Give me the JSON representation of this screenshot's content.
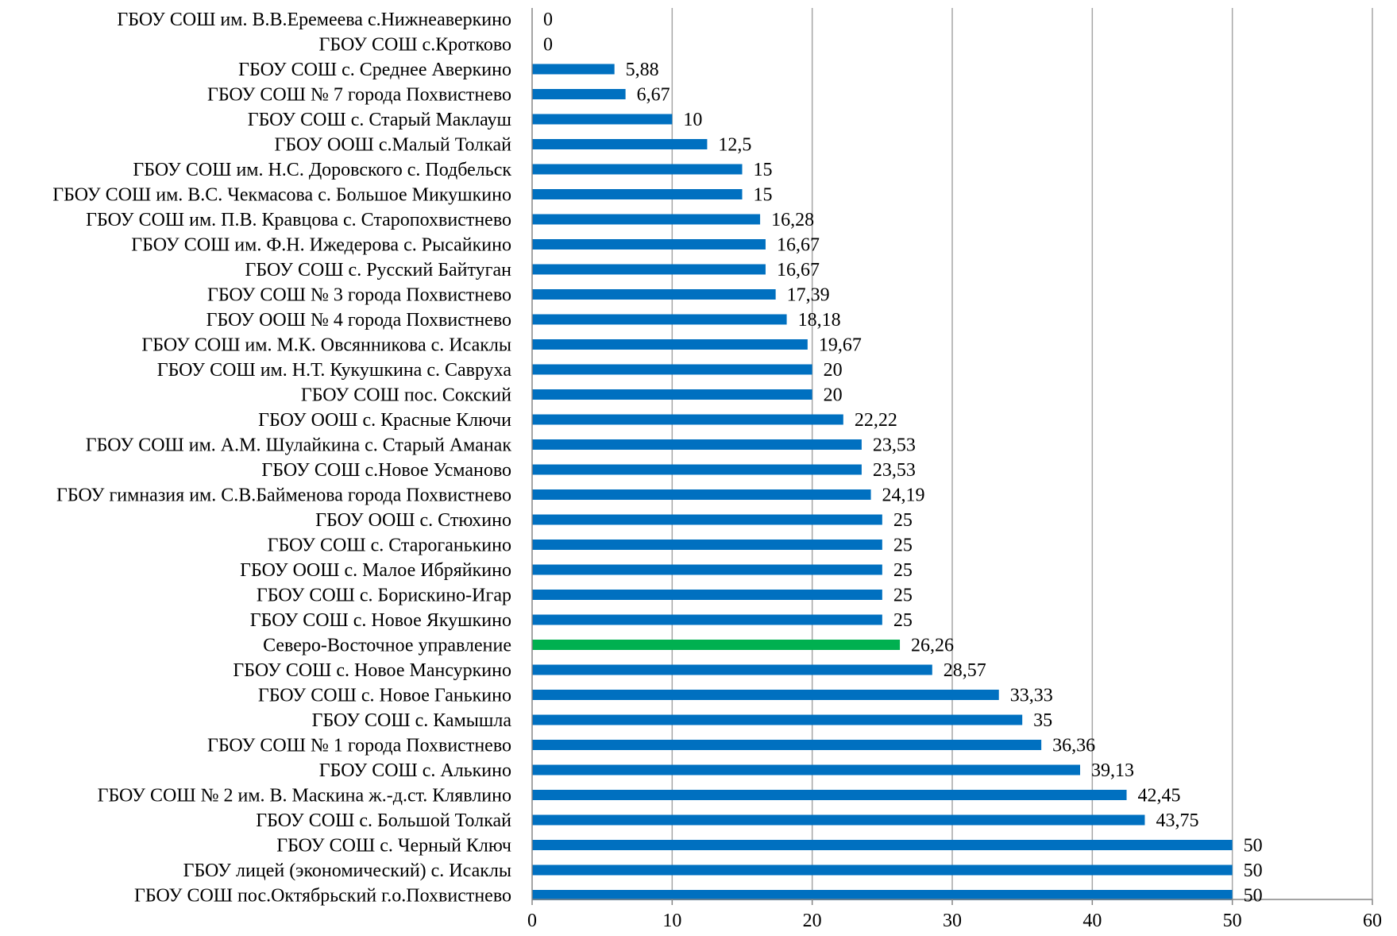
{
  "chart_data": {
    "type": "bar",
    "orientation": "horizontal",
    "title": "",
    "xlabel": "",
    "ylabel": "",
    "xlim": [
      0,
      60
    ],
    "x_ticks": [
      0,
      10,
      20,
      30,
      40,
      50,
      60
    ],
    "grid": "vertical",
    "legend": "none",
    "colors": {
      "default": "#0070C0",
      "highlight": "#00B050",
      "grid": "#A6A6A6"
    },
    "highlight_category": "Северо-Восточное управление",
    "categories": [
      "ГБОУ СОШ им. В.В.Еремеева с.Нижнеаверкино",
      "ГБОУ СОШ с.Кротково",
      "ГБОУ СОШ с. Среднее Аверкино",
      "ГБОУ СОШ № 7 города Похвистнево",
      "ГБОУ СОШ с. Старый Маклауш",
      "ГБОУ ООШ с.Малый Толкай",
      "ГБОУ СОШ им. Н.С. Доровского с. Подбельск",
      "ГБОУ СОШ им. В.С. Чекмасова с. Большое Микушкино",
      "ГБОУ СОШ им. П.В. Кравцова с. Старопохвистнево",
      "ГБОУ СОШ им. Ф.Н. Ижедерова с. Рысайкино",
      "ГБОУ СОШ с. Русский Байтуган",
      "ГБОУ СОШ № 3 города Похвистнево",
      "ГБОУ ООШ № 4 города Похвистнево",
      "ГБОУ СОШ им. М.К. Овсянникова с. Исаклы",
      "ГБОУ СОШ им. Н.Т. Кукушкина с. Савруха",
      "ГБОУ СОШ пос. Сокский",
      "ГБОУ ООШ с. Красные Ключи",
      "ГБОУ СОШ им. А.М. Шулайкина с. Старый Аманак",
      "ГБОУ СОШ с.Новое Усманово",
      "ГБОУ гимназия им. С.В.Байменова города Похвистнево",
      "ГБОУ ООШ с. Стюхино",
      "ГБОУ СОШ с. Староганькино",
      "ГБОУ ООШ с. Малое Ибряйкино",
      "ГБОУ СОШ с. Борискино-Игар",
      "ГБОУ СОШ с. Новое Якушкино",
      "Северо-Восточное управление",
      "ГБОУ СОШ с. Новое Мансуркино",
      "ГБОУ СОШ с. Новое Ганькино",
      "ГБОУ СОШ с. Камышла",
      "ГБОУ СОШ № 1 города Похвистнево",
      "ГБОУ СОШ с. Алькино",
      "ГБОУ СОШ № 2 им. В. Маскина ж.-д.ст. Клявлино",
      "ГБОУ СОШ с. Большой Толкай",
      "ГБОУ СОШ с. Черный Ключ",
      "ГБОУ лицей (экономический) с. Исаклы",
      "ГБОУ СОШ пос.Октябрьский г.о.Похвистнево"
    ],
    "values": [
      0,
      0,
      5.88,
      6.67,
      10,
      12.5,
      15,
      15,
      16.28,
      16.67,
      16.67,
      17.39,
      18.18,
      19.67,
      20,
      20,
      22.22,
      23.53,
      23.53,
      24.19,
      25,
      25,
      25,
      25,
      25,
      26.26,
      28.57,
      33.33,
      35,
      36.36,
      39.13,
      42.45,
      43.75,
      50,
      50,
      50
    ],
    "value_labels": [
      "0",
      "0",
      "5,88",
      "6,67",
      "10",
      "12,5",
      "15",
      "15",
      "16,28",
      "16,67",
      "16,67",
      "17,39",
      "18,18",
      "19,67",
      "20",
      "20",
      "22,22",
      "23,53",
      "23,53",
      "24,19",
      "25",
      "25",
      "25",
      "25",
      "25",
      "26,26",
      "28,57",
      "33,33",
      "35",
      "36,36",
      "39,13",
      "42,45",
      "43,75",
      "50",
      "50",
      "50"
    ]
  }
}
